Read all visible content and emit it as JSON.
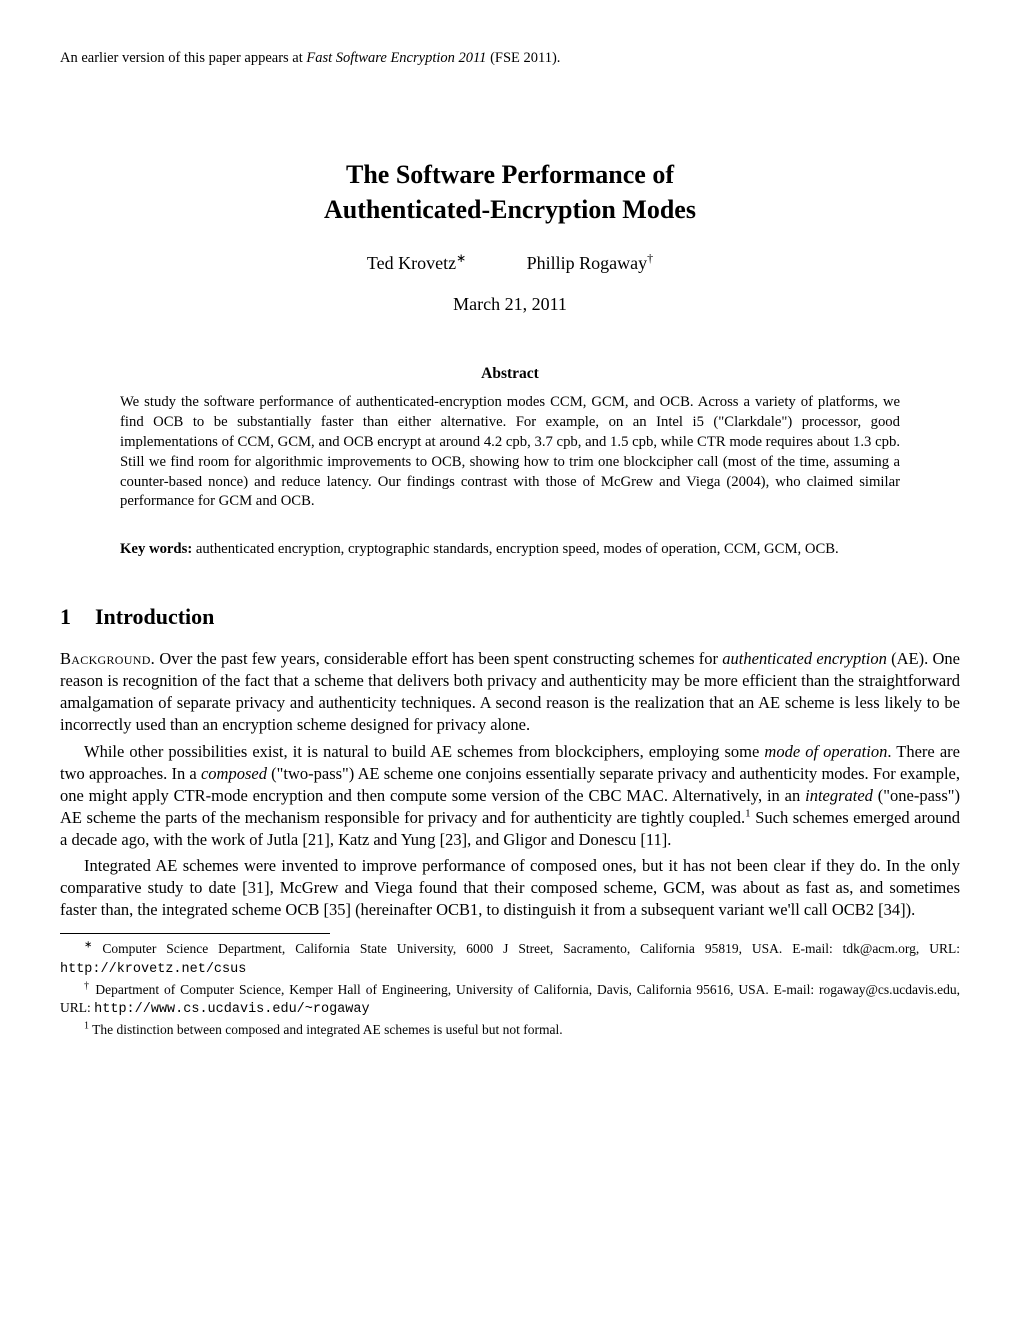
{
  "header_note": {
    "prefix": "An earlier version of this paper appears at ",
    "venue_italic": "Fast Software Encryption 2011",
    "suffix": " (FSE 2011)."
  },
  "title_line1": "The Software Performance of",
  "title_line2": "Authenticated-Encryption Modes",
  "author1": "Ted Krovetz",
  "author1_mark": "∗",
  "author2": "Phillip Rogaway",
  "author2_mark": "†",
  "date": "March 21, 2011",
  "abstract_heading": "Abstract",
  "abstract_text": "We study the software performance of authenticated-encryption modes CCM, GCM, and OCB. Across a variety of platforms, we find OCB to be substantially faster than either alternative. For example, on an Intel i5 (\"Clarkdale\") processor, good implementations of CCM, GCM, and OCB encrypt at around 4.2 cpb, 3.7 cpb, and 1.5 cpb, while CTR mode requires about 1.3 cpb. Still we find room for algorithmic improvements to OCB, showing how to trim one blockcipher call (most of the time, assuming a counter-based nonce) and reduce latency. Our findings contrast with those of McGrew and Viega (2004), who claimed similar performance for GCM and OCB.",
  "keywords_label": "Key words:",
  "keywords_text": " authenticated encryption, cryptographic standards, encryption speed, modes of operation, CCM, GCM, OCB.",
  "section_num": "1",
  "section_title": "Introduction",
  "para1": {
    "run_in": "Background.",
    "prefix": " Over the past few years, considerable effort has been spent constructing schemes for ",
    "italic1": "authenticated encryption",
    "rest": " (AE). One reason is recognition of the fact that a scheme that delivers both privacy and authenticity may be more efficient than the straightforward amalgamation of separate privacy and authenticity techniques. A second reason is the realization that an AE scheme is less likely to be incorrectly used than an encryption scheme designed for privacy alone."
  },
  "para2": {
    "prefix": "While other possibilities exist, it is natural to build AE schemes from blockciphers, employing some ",
    "italic1": "mode of operation",
    "mid1": ". There are two approaches. In a ",
    "italic2": "composed",
    "mid2": " (\"two-pass\") AE scheme one conjoins essentially separate privacy and authenticity modes. For example, one might apply CTR-mode encryption and then compute some version of the CBC MAC. Alternatively, in an ",
    "italic3": "integrated",
    "mid3": " (\"one-pass\") AE scheme the parts of the mechanism responsible for privacy and for authenticity are tightly coupled.",
    "sup": "1",
    "rest": " Such schemes emerged around a decade ago, with the work of Jutla [21], Katz and Yung [23], and Gligor and Donescu [11]."
  },
  "para3": "Integrated AE schemes were invented to improve performance of composed ones, but it has not been clear if they do. In the only comparative study to date [31], McGrew and Viega found that their composed scheme, GCM, was about as fast as, and sometimes faster than, the integrated scheme OCB [35] (hereinafter OCB1, to distinguish it from a subsequent variant we'll call OCB2 [34]).",
  "footnote1": {
    "mark": "∗",
    "text_pre": " Computer Science Department, California State University, 6000 J Street, Sacramento, California 95819, USA. E-mail: tdk@acm.org, URL: ",
    "url": "http://krovetz.net/csus"
  },
  "footnote2": {
    "mark": "†",
    "text_pre": " Department of Computer Science, Kemper Hall of Engineering, University of California, Davis, California 95616, USA. E-mail: rogaway@cs.ucdavis.edu, URL: ",
    "url": "http://www.cs.ucdavis.edu/~rogaway"
  },
  "footnote3": {
    "mark": "1",
    "text": " The distinction between composed and integrated AE schemes is useful but not formal."
  }
}
